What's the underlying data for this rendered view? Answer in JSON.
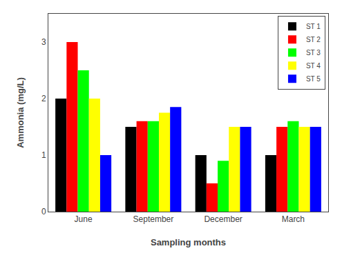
{
  "chart_data": {
    "type": "bar",
    "categories": [
      "June",
      "September",
      "December",
      "March"
    ],
    "series": [
      {
        "name": "ST 1",
        "color": "#000000",
        "values": [
          2.0,
          1.5,
          1.0,
          1.0
        ]
      },
      {
        "name": "ST 2",
        "color": "#ff0000",
        "values": [
          3.0,
          1.6,
          0.5,
          1.5
        ]
      },
      {
        "name": "ST 3",
        "color": "#00ff00",
        "values": [
          2.5,
          1.6,
          0.9,
          1.6
        ]
      },
      {
        "name": "ST 4",
        "color": "#ffff00",
        "values": [
          2.0,
          1.75,
          1.5,
          1.5
        ]
      },
      {
        "name": "ST 5",
        "color": "#0000ff",
        "values": [
          1.0,
          1.85,
          1.5,
          1.5
        ]
      }
    ],
    "xlabel": "Sampling months",
    "ylabel": "Ammonia (mg/L)",
    "ylim": [
      0,
      3.5
    ],
    "yticks": [
      0,
      1,
      2,
      3
    ],
    "legend": "upper right",
    "grid": false
  }
}
